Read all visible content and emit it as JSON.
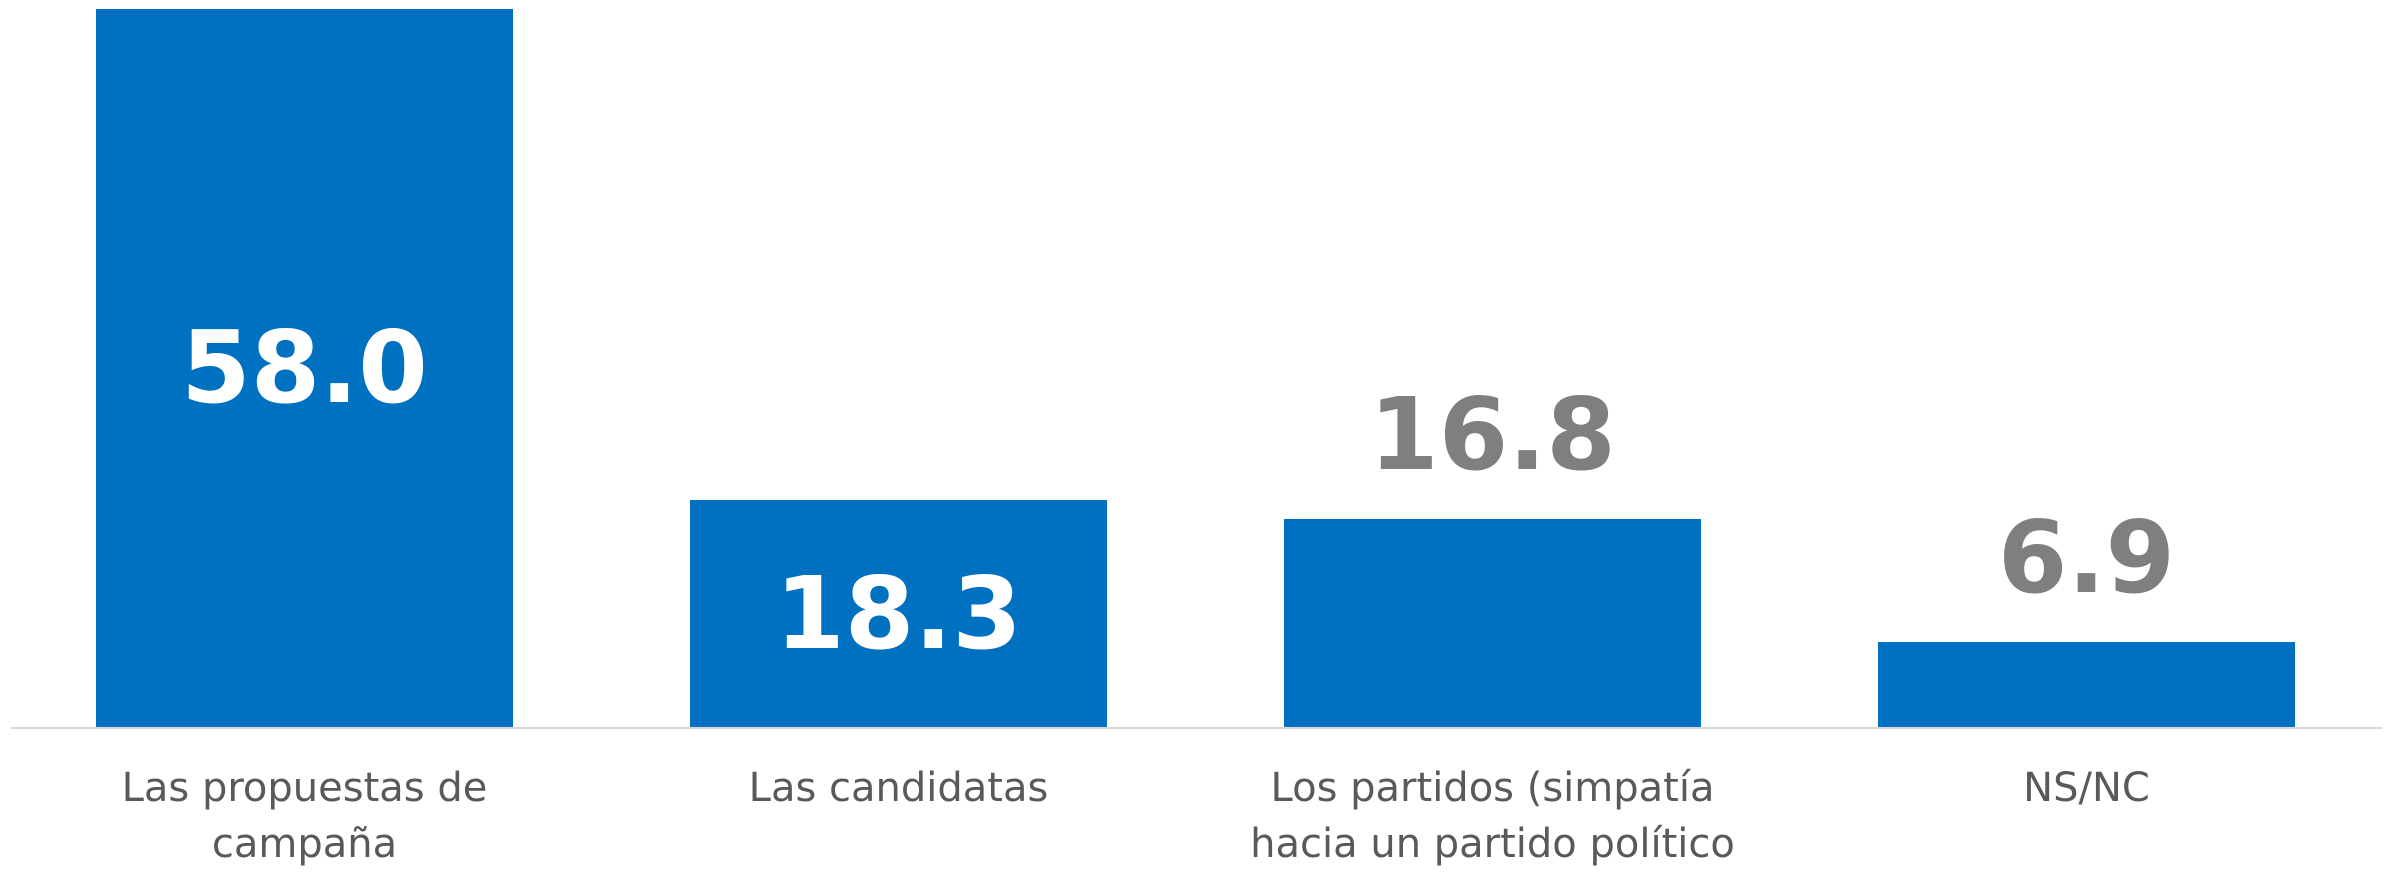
{
  "chart_data": {
    "type": "bar",
    "categories": [
      "Las propuestas de campaña",
      "Las candidatas",
      "Los partidos (simpatía hacia un partido político",
      "NS/NC"
    ],
    "values": [
      58.0,
      18.3,
      16.8,
      6.9
    ],
    "value_labels": [
      "58.0",
      "18.3",
      "16.8",
      "6.9"
    ],
    "color": "#0070c0"
  }
}
